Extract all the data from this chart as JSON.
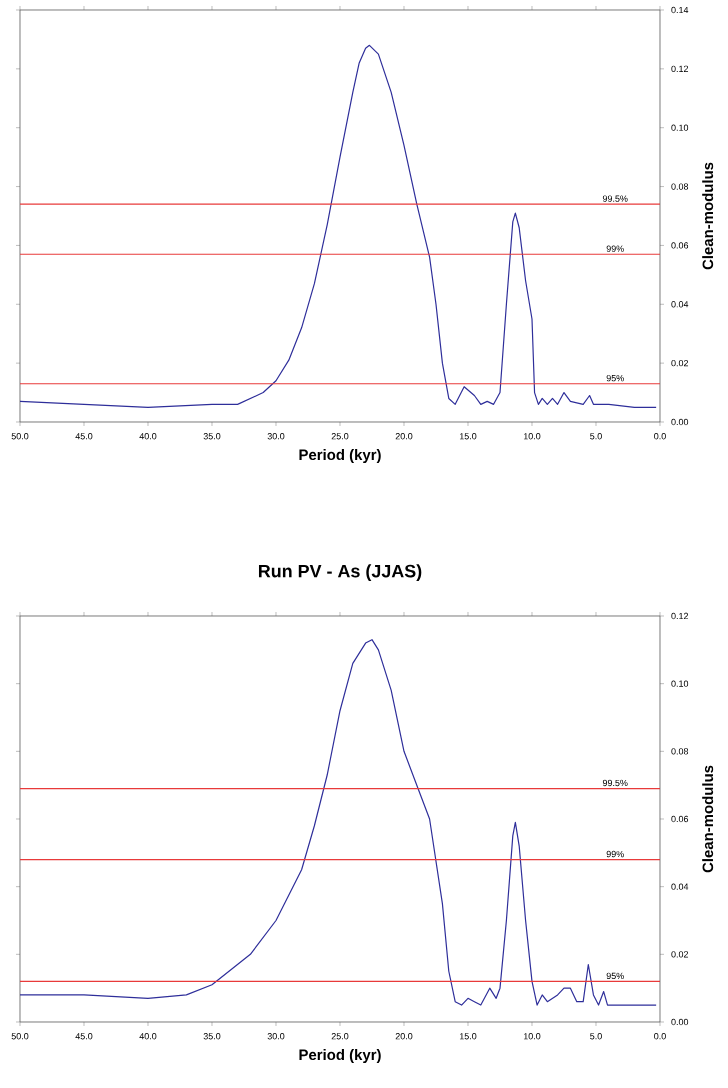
{
  "chart_data": [
    {
      "type": "line",
      "xlabel": "Period (kyr)",
      "ylabel": "Clean-modulus",
      "xlim": [
        50,
        0
      ],
      "ylim": [
        0,
        0.14
      ],
      "xticks": [
        {
          "value": 50,
          "label": "50.0"
        },
        {
          "value": 45,
          "label": "45.0"
        },
        {
          "value": 40,
          "label": "40.0"
        },
        {
          "value": 35,
          "label": "35.0"
        },
        {
          "value": 30,
          "label": "30.0"
        },
        {
          "value": 25,
          "label": "25.0"
        },
        {
          "value": 20,
          "label": "20.0"
        },
        {
          "value": 15,
          "label": "15.0"
        },
        {
          "value": 10,
          "label": "10.0"
        },
        {
          "value": 5,
          "label": "5.0"
        },
        {
          "value": 0,
          "label": "0.0"
        }
      ],
      "yticks": [
        {
          "value": 0,
          "label": "0.00"
        },
        {
          "value": 0.02,
          "label": "0.02"
        },
        {
          "value": 0.04,
          "label": "0.04"
        },
        {
          "value": 0.06,
          "label": "0.06"
        },
        {
          "value": 0.08,
          "label": "0.08"
        },
        {
          "value": 0.1,
          "label": "0.10"
        },
        {
          "value": 0.12,
          "label": "0.12"
        },
        {
          "value": 0.14,
          "label": "0.14"
        }
      ],
      "series": [
        {
          "color": "#2e2e9a",
          "x": [
            50,
            45,
            40,
            35,
            33,
            31,
            30,
            29,
            28,
            27,
            26,
            25,
            24,
            23.5,
            23,
            22.7,
            22,
            21,
            20,
            19,
            18,
            17.5,
            17,
            16.5,
            16,
            15.3,
            14.5,
            14,
            13.5,
            13,
            12.5,
            12,
            11.5,
            11.3,
            11,
            10.5,
            10,
            9.8,
            9.5,
            9.2,
            8.8,
            8.4,
            8,
            7.5,
            7,
            6,
            5.5,
            5.2,
            4,
            2,
            0.3
          ],
          "values": [
            0.007,
            0.006,
            0.005,
            0.006,
            0.006,
            0.01,
            0.014,
            0.021,
            0.032,
            0.047,
            0.067,
            0.09,
            0.112,
            0.122,
            0.127,
            0.128,
            0.125,
            0.112,
            0.094,
            0.074,
            0.056,
            0.04,
            0.02,
            0.008,
            0.006,
            0.012,
            0.009,
            0.006,
            0.007,
            0.006,
            0.01,
            0.04,
            0.068,
            0.071,
            0.066,
            0.048,
            0.035,
            0.01,
            0.006,
            0.008,
            0.006,
            0.008,
            0.006,
            0.01,
            0.007,
            0.006,
            0.009,
            0.006,
            0.006,
            0.005,
            0.005
          ]
        }
      ],
      "ref_lines": [
        {
          "axis": "y",
          "value": 0.074,
          "color": "#e83a3a"
        },
        {
          "axis": "y",
          "value": 0.057,
          "color": "#e83a3a"
        },
        {
          "axis": "y",
          "value": 0.013,
          "color": "#e83a3a"
        }
      ],
      "annotations": [
        "99.5%",
        "99%",
        "95%"
      ]
    },
    {
      "type": "line",
      "title": "Run PV - As (JJAS)",
      "xlabel": "Period (kyr)",
      "ylabel": "Clean-modulus",
      "xlim": [
        50,
        0
      ],
      "ylim": [
        0,
        0.12
      ],
      "xticks": [
        {
          "value": 50,
          "label": "50.0"
        },
        {
          "value": 45,
          "label": "45.0"
        },
        {
          "value": 40,
          "label": "40.0"
        },
        {
          "value": 35,
          "label": "35.0"
        },
        {
          "value": 30,
          "label": "30.0"
        },
        {
          "value": 25,
          "label": "25.0"
        },
        {
          "value": 20,
          "label": "20.0"
        },
        {
          "value": 15,
          "label": "15.0"
        },
        {
          "value": 10,
          "label": "10.0"
        },
        {
          "value": 5,
          "label": "5.0"
        },
        {
          "value": 0,
          "label": "0.0"
        }
      ],
      "yticks": [
        {
          "value": 0,
          "label": "0.00"
        },
        {
          "value": 0.02,
          "label": "0.02"
        },
        {
          "value": 0.04,
          "label": "0.04"
        },
        {
          "value": 0.06,
          "label": "0.06"
        },
        {
          "value": 0.08,
          "label": "0.08"
        },
        {
          "value": 0.1,
          "label": "0.10"
        },
        {
          "value": 0.12,
          "label": "0.12"
        }
      ],
      "series": [
        {
          "color": "#2e2e9a",
          "x": [
            50,
            45,
            40,
            37,
            35,
            32,
            30,
            28,
            27,
            26,
            25,
            24,
            23,
            22.5,
            22,
            21,
            20,
            19,
            18,
            17,
            16.5,
            16,
            15.5,
            15,
            14.5,
            14,
            13.3,
            12.8,
            12.5,
            12,
            11.5,
            11.3,
            11,
            10.5,
            10,
            9.6,
            9.2,
            8.8,
            8,
            7.5,
            7,
            6.5,
            6,
            5.6,
            5.2,
            4.8,
            4.4,
            4.1,
            3,
            0.3
          ],
          "values": [
            0.008,
            0.008,
            0.007,
            0.008,
            0.011,
            0.02,
            0.03,
            0.045,
            0.058,
            0.073,
            0.092,
            0.106,
            0.112,
            0.113,
            0.11,
            0.098,
            0.08,
            0.07,
            0.06,
            0.035,
            0.015,
            0.006,
            0.005,
            0.007,
            0.006,
            0.005,
            0.01,
            0.007,
            0.01,
            0.03,
            0.055,
            0.059,
            0.052,
            0.03,
            0.012,
            0.005,
            0.008,
            0.006,
            0.008,
            0.01,
            0.01,
            0.006,
            0.006,
            0.017,
            0.008,
            0.005,
            0.009,
            0.005,
            0.005,
            0.005
          ]
        }
      ],
      "ref_lines": [
        {
          "axis": "y",
          "value": 0.069,
          "color": "#e83a3a"
        },
        {
          "axis": "y",
          "value": 0.048,
          "color": "#e83a3a"
        },
        {
          "axis": "y",
          "value": 0.012,
          "color": "#e83a3a"
        }
      ],
      "annotations": [
        "99.5%",
        "99%",
        "95%"
      ]
    }
  ]
}
